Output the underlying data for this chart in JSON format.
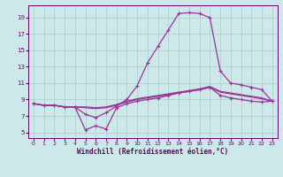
{
  "xlabel": "Windchill (Refroidissement éolien,°C)",
  "bg_color": "#cde8e8",
  "grid_color": "#aacccc",
  "line_color": "#993399",
  "text_color": "#660066",
  "x_ticks": [
    0,
    1,
    2,
    3,
    4,
    5,
    6,
    7,
    8,
    9,
    10,
    11,
    12,
    13,
    14,
    15,
    16,
    17,
    18,
    19,
    20,
    21,
    22,
    23
  ],
  "y_ticks": [
    5,
    7,
    9,
    11,
    13,
    15,
    17,
    19
  ],
  "xlim": [
    -0.5,
    23.5
  ],
  "ylim": [
    4.3,
    20.5
  ],
  "series": [
    {
      "y": [
        8.5,
        8.3,
        8.3,
        8.1,
        8.1,
        7.2,
        6.8,
        7.4,
        8.2,
        9.0,
        10.7,
        13.5,
        15.5,
        17.5,
        19.5,
        19.6,
        19.5,
        19.0,
        12.5,
        11.0,
        10.8,
        10.5,
        10.2,
        8.8
      ],
      "marker": true,
      "lw": 0.9
    },
    {
      "y": [
        8.5,
        8.3,
        8.3,
        8.1,
        8.1,
        5.3,
        5.8,
        5.4,
        8.0,
        8.5,
        8.8,
        9.0,
        9.2,
        9.5,
        9.8,
        10.0,
        10.2,
        10.5,
        9.5,
        9.2,
        9.0,
        8.8,
        8.7,
        8.8
      ],
      "marker": true,
      "lw": 0.9
    },
    {
      "y": [
        8.5,
        8.3,
        8.3,
        8.1,
        8.1,
        8.0,
        7.9,
        8.0,
        8.3,
        8.7,
        9.0,
        9.2,
        9.4,
        9.6,
        9.8,
        10.0,
        10.2,
        10.5,
        9.9,
        9.7,
        9.5,
        9.3,
        9.1,
        8.8
      ],
      "marker": false,
      "lw": 0.9
    },
    {
      "y": [
        8.5,
        8.3,
        8.3,
        8.1,
        8.1,
        8.1,
        8.0,
        8.1,
        8.4,
        8.8,
        9.1,
        9.3,
        9.5,
        9.7,
        9.9,
        10.1,
        10.3,
        10.6,
        10.0,
        9.8,
        9.6,
        9.4,
        9.2,
        8.8
      ],
      "marker": false,
      "lw": 0.9
    }
  ]
}
